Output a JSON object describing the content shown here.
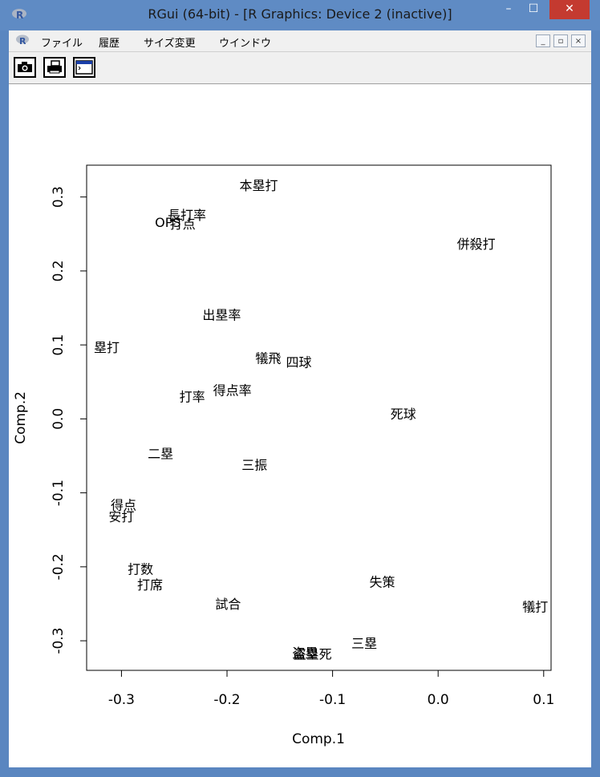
{
  "window": {
    "title": "RGui (64-bit) - [R Graphics: Device 2 (inactive)]",
    "minimize_glyph": "–",
    "maximize_glyph": "☐",
    "close_glyph": "✕"
  },
  "menu": {
    "items": [
      "ファイル",
      "履歴",
      "サイズ変更",
      "ウインドウ"
    ],
    "mdi_buttons": [
      "_",
      "▫",
      "×"
    ]
  },
  "toolbar": {
    "buttons": [
      "camera-icon",
      "printer-icon",
      "console-window-icon"
    ]
  },
  "chart_data": {
    "type": "scatter",
    "xlabel": "Comp.1",
    "ylabel": "Comp.2",
    "xlim": [
      -0.333,
      0.107
    ],
    "ylim": [
      -0.34,
      0.343
    ],
    "xticks": [
      -0.3,
      -0.2,
      -0.1,
      0.0,
      0.1
    ],
    "xtick_labels": [
      "-0.3",
      "-0.2",
      "-0.1",
      "0.0",
      "0.1"
    ],
    "yticks": [
      -0.3,
      -0.2,
      -0.1,
      0.0,
      0.1,
      0.2,
      0.3
    ],
    "ytick_labels": [
      "-0.3",
      "-0.2",
      "-0.1",
      "0.0",
      "0.1",
      "0.2",
      "0.3"
    ],
    "grid": false,
    "points": [
      {
        "label": "本塁打",
        "x": -0.17,
        "y": 0.316
      },
      {
        "label": "長打率",
        "x": -0.238,
        "y": 0.276
      },
      {
        "label": "OPS",
        "x": -0.256,
        "y": 0.266
      },
      {
        "label": "打点",
        "x": -0.242,
        "y": 0.264
      },
      {
        "label": "併殺打",
        "x": 0.036,
        "y": 0.237
      },
      {
        "label": "出塁率",
        "x": -0.205,
        "y": 0.141
      },
      {
        "label": "塁打",
        "x": -0.314,
        "y": 0.097
      },
      {
        "label": "犠飛",
        "x": -0.161,
        "y": 0.082
      },
      {
        "label": "四球",
        "x": -0.132,
        "y": 0.077
      },
      {
        "label": "得点率",
        "x": -0.195,
        "y": 0.039
      },
      {
        "label": "打率",
        "x": -0.233,
        "y": 0.03
      },
      {
        "label": "死球",
        "x": -0.033,
        "y": 0.007
      },
      {
        "label": "二塁",
        "x": -0.263,
        "y": -0.047
      },
      {
        "label": "三振",
        "x": -0.174,
        "y": -0.062
      },
      {
        "label": "得点",
        "x": -0.298,
        "y": -0.116
      },
      {
        "label": "安打",
        "x": -0.3,
        "y": -0.132
      },
      {
        "label": "打数",
        "x": -0.282,
        "y": -0.203
      },
      {
        "label": "打席",
        "x": -0.273,
        "y": -0.224
      },
      {
        "label": "失策",
        "x": -0.053,
        "y": -0.22
      },
      {
        "label": "試合",
        "x": -0.199,
        "y": -0.25
      },
      {
        "label": "犠打",
        "x": 0.092,
        "y": -0.254
      },
      {
        "label": "三塁",
        "x": -0.07,
        "y": -0.303
      },
      {
        "label": "盗塁",
        "x": -0.126,
        "y": -0.316
      },
      {
        "label": "盗塁死",
        "x": -0.119,
        "y": -0.318
      }
    ]
  }
}
